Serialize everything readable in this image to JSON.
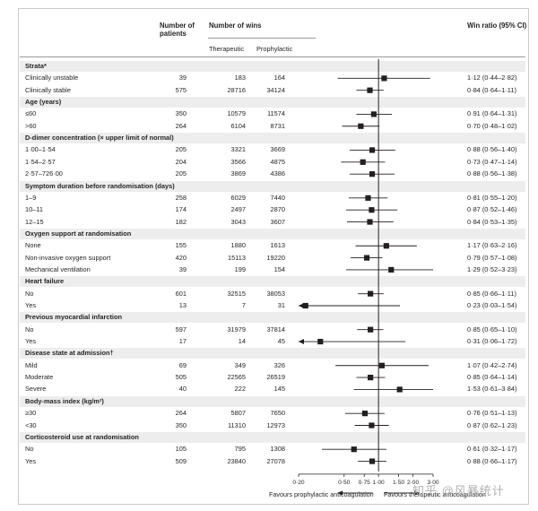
{
  "headers": {
    "patients": "Number of patients",
    "wins": "Number of wins",
    "therapeutic": "Therapeutic",
    "prophylactic": "Prophylactic",
    "win_ratio": "Win ratio (95% CI)"
  },
  "axis": {
    "ticks": [
      0.2,
      0.5,
      0.75,
      1.0,
      1.5,
      2.0,
      3.0
    ],
    "tick_labels": [
      "0·20",
      "0·50",
      "0·75",
      "1·00",
      "1·50",
      "2·00",
      "3·00"
    ],
    "left_caption": "Favours prophylactic anticoagulation",
    "right_caption": "Favours therapeutic anticoagulation"
  },
  "watermark": "知乎 @风暴统计",
  "chart_data": {
    "type": "forest",
    "title": "",
    "xlabel": "",
    "xscale": "log",
    "xlim": [
      0.2,
      3.0
    ],
    "reference_line": 1.0,
    "rows": [
      {
        "section": "Strata*"
      },
      {
        "label": "Clinically unstable",
        "n": "39",
        "wins_t": "183",
        "wins_p": "164",
        "est": 1.12,
        "lo": 0.44,
        "hi": 2.82,
        "ci": "1·12 (0·44–2·82)"
      },
      {
        "label": "Clinically stable",
        "n": "575",
        "wins_t": "28716",
        "wins_p": "34124",
        "est": 0.84,
        "lo": 0.64,
        "hi": 1.11,
        "ci": "0·84 (0·64–1·11)"
      },
      {
        "section": "Age (years)"
      },
      {
        "label": "≤60",
        "n": "350",
        "wins_t": "10579",
        "wins_p": "11574",
        "est": 0.91,
        "lo": 0.64,
        "hi": 1.31,
        "ci": "0·91 (0·64–1·31)"
      },
      {
        "label": ">60",
        "n": "264",
        "wins_t": "6104",
        "wins_p": "8731",
        "est": 0.7,
        "lo": 0.48,
        "hi": 1.02,
        "ci": "0·70 (0·48–1·02)"
      },
      {
        "section": "D-dimer concentration (× upper limit of normal)"
      },
      {
        "label": "1·00–1·54",
        "n": "205",
        "wins_t": "3321",
        "wins_p": "3669",
        "est": 0.88,
        "lo": 0.56,
        "hi": 1.4,
        "ci": "0·88 (0·56–1·40)"
      },
      {
        "label": "1·54–2·57",
        "n": "204",
        "wins_t": "3566",
        "wins_p": "4875",
        "est": 0.73,
        "lo": 0.47,
        "hi": 1.14,
        "ci": "0·73 (0·47–1·14)"
      },
      {
        "label": "2·57–726·00",
        "n": "205",
        "wins_t": "3869",
        "wins_p": "4386",
        "est": 0.88,
        "lo": 0.56,
        "hi": 1.38,
        "ci": "0·88 (0·56–1·38)"
      },
      {
        "section": "Symptom duration before randomisation (days)"
      },
      {
        "label": "1–9",
        "n": "258",
        "wins_t": "6029",
        "wins_p": "7440",
        "est": 0.81,
        "lo": 0.55,
        "hi": 1.2,
        "ci": "0·81 (0·55–1·20)"
      },
      {
        "label": "10–11",
        "n": "174",
        "wins_t": "2497",
        "wins_p": "2870",
        "est": 0.87,
        "lo": 0.52,
        "hi": 1.46,
        "ci": "0·87 (0·52–1·46)"
      },
      {
        "label": "12–15",
        "n": "182",
        "wins_t": "3043",
        "wins_p": "3607",
        "est": 0.84,
        "lo": 0.53,
        "hi": 1.35,
        "ci": "0·84 (0·53–1·35)"
      },
      {
        "section": "Oxygen support at randomisation"
      },
      {
        "label": "None",
        "n": "155",
        "wins_t": "1880",
        "wins_p": "1613",
        "est": 1.17,
        "lo": 0.63,
        "hi": 2.16,
        "ci": "1·17 (0·63–2·16)"
      },
      {
        "label": "Non-invasive oxygen support",
        "n": "420",
        "wins_t": "15113",
        "wins_p": "19220",
        "est": 0.79,
        "lo": 0.57,
        "hi": 1.08,
        "ci": "0·79 (0·57–1·08)"
      },
      {
        "label": "Mechanical ventilation",
        "n": "39",
        "wins_t": "199",
        "wins_p": "154",
        "est": 1.29,
        "lo": 0.52,
        "hi": 3.23,
        "ci": "1·29 (0·52–3·23)"
      },
      {
        "section": "Heart failure"
      },
      {
        "label": "No",
        "n": "601",
        "wins_t": "32515",
        "wins_p": "38053",
        "est": 0.85,
        "lo": 0.66,
        "hi": 1.11,
        "ci": "0·85 (0·66–1·11)"
      },
      {
        "label": "Yes",
        "n": "13",
        "wins_t": "7",
        "wins_p": "31",
        "est": 0.23,
        "lo": 0.03,
        "hi": 1.54,
        "ci": "0·23 (0·03–1·54)"
      },
      {
        "section": "Previous myocardial infarction"
      },
      {
        "label": "No",
        "n": "597",
        "wins_t": "31979",
        "wins_p": "37814",
        "est": 0.85,
        "lo": 0.65,
        "hi": 1.1,
        "ci": "0·85 (0·65–1·10)"
      },
      {
        "label": "Yes",
        "n": "17",
        "wins_t": "14",
        "wins_p": "45",
        "est": 0.31,
        "lo": 0.06,
        "hi": 1.72,
        "ci": "0·31 (0·06–1·72)"
      },
      {
        "section": "Disease state at admission†"
      },
      {
        "label": "Mild",
        "n": "69",
        "wins_t": "349",
        "wins_p": "326",
        "est": 1.07,
        "lo": 0.42,
        "hi": 2.74,
        "ci": "1·07 (0·42–2·74)"
      },
      {
        "label": "Moderate",
        "n": "505",
        "wins_t": "22565",
        "wins_p": "26519",
        "est": 0.85,
        "lo": 0.64,
        "hi": 1.14,
        "ci": "0·85 (0·64–1·14)"
      },
      {
        "label": "Severe",
        "n": "40",
        "wins_t": "222",
        "wins_p": "145",
        "est": 1.53,
        "lo": 0.61,
        "hi": 3.84,
        "ci": "1·53 (0·61–3·84)"
      },
      {
        "section": "Body-mass index (kg/m²)"
      },
      {
        "label": "≥30",
        "n": "264",
        "wins_t": "5807",
        "wins_p": "7650",
        "est": 0.76,
        "lo": 0.51,
        "hi": 1.13,
        "ci": "0·76 (0·51–1·13)"
      },
      {
        "label": "<30",
        "n": "350",
        "wins_t": "11310",
        "wins_p": "12973",
        "est": 0.87,
        "lo": 0.62,
        "hi": 1.23,
        "ci": "0·87 (0·62–1·23)"
      },
      {
        "section": "Corticosteroid use at randomisation"
      },
      {
        "label": "No",
        "n": "105",
        "wins_t": "795",
        "wins_p": "1308",
        "est": 0.61,
        "lo": 0.32,
        "hi": 1.17,
        "ci": "0·61 (0·32–1·17)"
      },
      {
        "label": "Yes",
        "n": "509",
        "wins_t": "23840",
        "wins_p": "27078",
        "est": 0.88,
        "lo": 0.66,
        "hi": 1.17,
        "ci": "0·88 (0·66–1·17)"
      }
    ]
  }
}
